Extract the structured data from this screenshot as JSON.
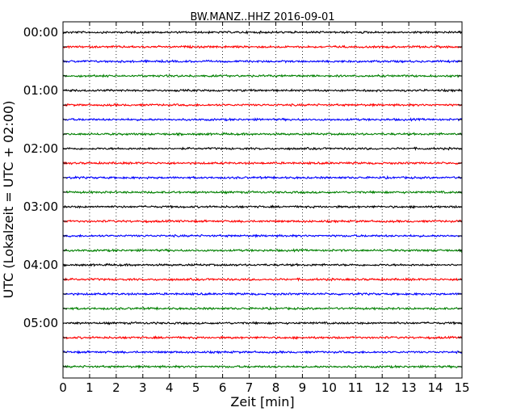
{
  "chart_data": {
    "type": "line",
    "title": "BW.MANZ..HHZ 2016-09-01",
    "xlabel": "Zeit  [min]",
    "ylabel": "UTC (Lokalzeit = UTC + 02:00)",
    "xlim": [
      0,
      15
    ],
    "x_ticks": [
      "0",
      "1",
      "2",
      "3",
      "4",
      "5",
      "6",
      "7",
      "8",
      "9",
      "10",
      "11",
      "12",
      "13",
      "14",
      "15"
    ],
    "y_tick_labels": [
      "00:00",
      "01:00",
      "02:00",
      "03:00",
      "04:00",
      "05:00"
    ],
    "grid": "vertical-dotted",
    "trace_interval_min": 15,
    "series": [
      {
        "start": "00:00",
        "color": "#000000"
      },
      {
        "start": "00:15",
        "color": "#ff0000"
      },
      {
        "start": "00:30",
        "color": "#0000ff"
      },
      {
        "start": "00:45",
        "color": "#008000"
      },
      {
        "start": "01:00",
        "color": "#000000"
      },
      {
        "start": "01:15",
        "color": "#ff0000"
      },
      {
        "start": "01:30",
        "color": "#0000ff"
      },
      {
        "start": "01:45",
        "color": "#008000"
      },
      {
        "start": "02:00",
        "color": "#000000"
      },
      {
        "start": "02:15",
        "color": "#ff0000"
      },
      {
        "start": "02:30",
        "color": "#0000ff"
      },
      {
        "start": "02:45",
        "color": "#008000"
      },
      {
        "start": "03:00",
        "color": "#000000"
      },
      {
        "start": "03:15",
        "color": "#ff0000"
      },
      {
        "start": "03:30",
        "color": "#0000ff"
      },
      {
        "start": "03:45",
        "color": "#008000"
      },
      {
        "start": "04:00",
        "color": "#000000"
      },
      {
        "start": "04:15",
        "color": "#ff0000"
      },
      {
        "start": "04:30",
        "color": "#0000ff"
      },
      {
        "start": "04:45",
        "color": "#008000"
      },
      {
        "start": "05:00",
        "color": "#000000"
      },
      {
        "start": "05:15",
        "color": "#ff0000"
      },
      {
        "start": "05:30",
        "color": "#0000ff"
      },
      {
        "start": "05:45",
        "color": "#008000"
      }
    ]
  }
}
